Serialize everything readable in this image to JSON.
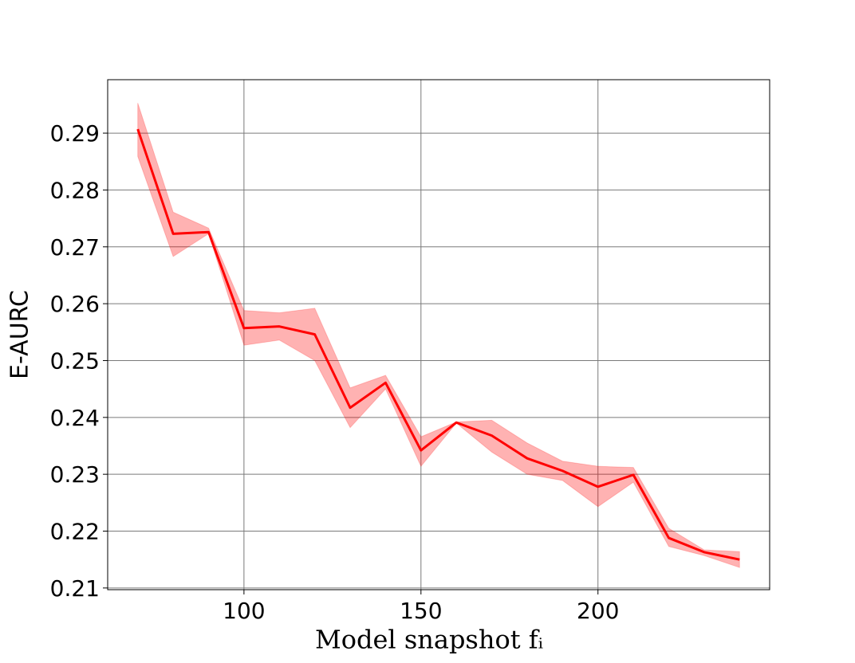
{
  "chart_data": {
    "type": "line",
    "x_label": "Model snapshot fᵢ",
    "y_label": "E-AURC",
    "x": [
      70,
      80,
      90,
      100,
      110,
      120,
      130,
      140,
      150,
      160,
      170,
      180,
      190,
      200,
      210,
      220,
      230,
      240
    ],
    "series": [
      {
        "color": "#ff0000",
        "values": [
          0.2907,
          0.2723,
          0.2726,
          0.2557,
          0.256,
          0.2546,
          0.2417,
          0.2461,
          0.2342,
          0.2391,
          0.2368,
          0.2328,
          0.2306,
          0.2278,
          0.2299,
          0.2188,
          0.2163,
          0.215
        ],
        "upper": [
          0.2953,
          0.2761,
          0.2733,
          0.2588,
          0.2584,
          0.2592,
          0.2452,
          0.2474,
          0.2366,
          0.2392,
          0.2395,
          0.2355,
          0.2323,
          0.2314,
          0.2312,
          0.2205,
          0.2167,
          0.2164
        ],
        "lower": [
          0.2859,
          0.2683,
          0.2723,
          0.2527,
          0.2536,
          0.25,
          0.2382,
          0.245,
          0.2314,
          0.239,
          0.2339,
          0.23,
          0.2289,
          0.2243,
          0.2286,
          0.2173,
          0.2157,
          0.2136
        ]
      }
    ],
    "xlim": [
      61.5,
      248.5
    ],
    "xticks": [
      100,
      150,
      200
    ],
    "ylim": [
      0.2097,
      0.2994
    ],
    "yticks": [
      0.21,
      0.22,
      0.23,
      0.24,
      0.25,
      0.26,
      0.27,
      0.28,
      0.29
    ],
    "grid": true
  }
}
